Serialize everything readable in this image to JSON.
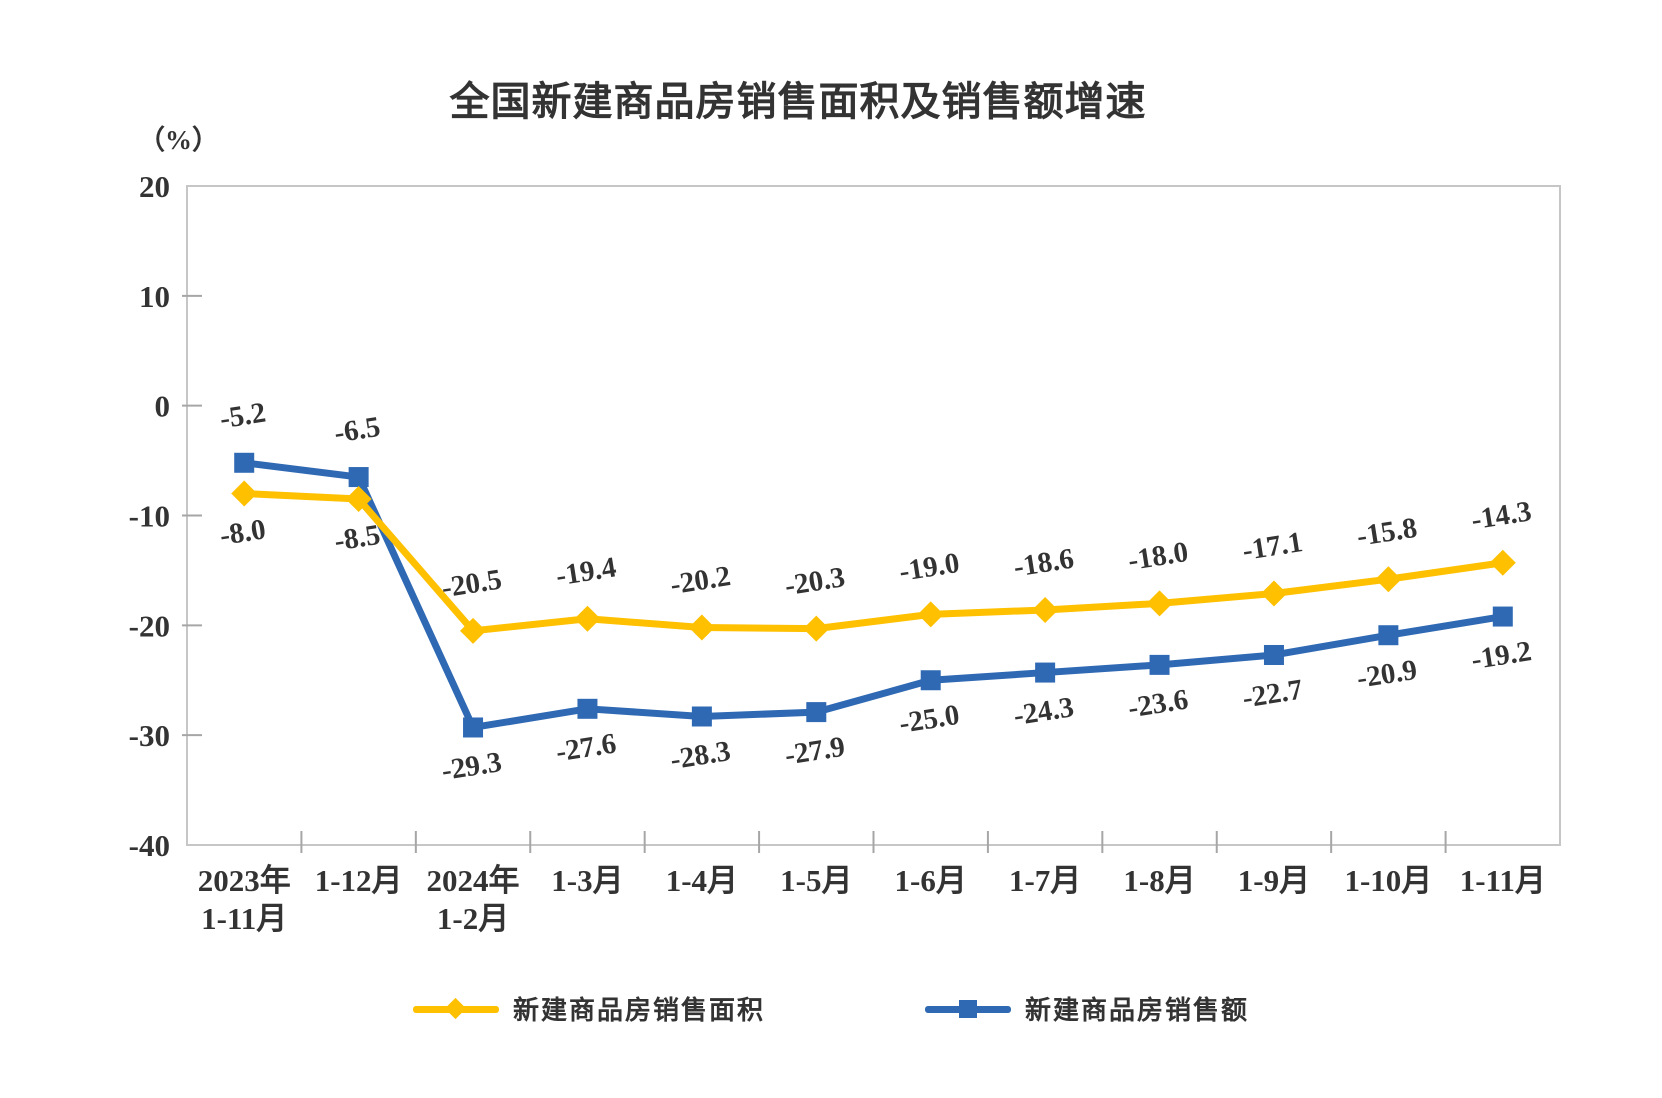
{
  "chart_data": {
    "type": "line",
    "title": "全国新建商品房销售面积及销售额增速",
    "y_unit": "（%）",
    "ylim": [
      -40,
      20
    ],
    "yticks": [
      20,
      10,
      0,
      -10,
      -20,
      -30,
      -40
    ],
    "grid": false,
    "legend_position": "bottom",
    "axis_color": "#C6C6C6",
    "tick_color": "#A6A6A6",
    "label_color": "#333333",
    "categories": [
      "2023年\n1-11月",
      "1-12月",
      "2024年\n1-2月",
      "1-3月",
      "1-4月",
      "1-5月",
      "1-6月",
      "1-7月",
      "1-8月",
      "1-9月",
      "1-10月",
      "1-11月"
    ],
    "series": [
      {
        "name": "新建商品房销售面积",
        "color": "#FFC000",
        "marker": "diamond",
        "values": [
          -8.0,
          -8.5,
          -20.5,
          -19.4,
          -20.2,
          -20.3,
          -19.0,
          -18.6,
          -18.0,
          -17.1,
          -15.8,
          -14.3
        ]
      },
      {
        "name": "新建商品房销售额",
        "color": "#2F69B3",
        "marker": "square",
        "values": [
          -5.2,
          -6.5,
          -29.3,
          -27.6,
          -28.3,
          -27.9,
          -25.0,
          -24.3,
          -23.6,
          -22.7,
          -20.9,
          -19.2
        ]
      }
    ]
  }
}
